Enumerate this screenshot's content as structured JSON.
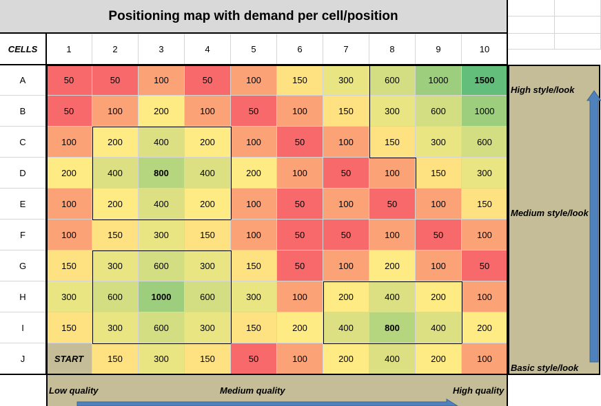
{
  "chart_data": {
    "type": "heatmap",
    "title": "Positioning map with demand per cell/position",
    "corner_label": "CELLS",
    "columns": [
      "1",
      "2",
      "3",
      "4",
      "5",
      "6",
      "7",
      "8",
      "9",
      "10"
    ],
    "rows": [
      "A",
      "B",
      "C",
      "D",
      "E",
      "F",
      "G",
      "H",
      "I",
      "J"
    ],
    "start_label": "START",
    "values": [
      [
        50,
        50,
        100,
        50,
        100,
        150,
        300,
        600,
        1000,
        1500
      ],
      [
        50,
        100,
        200,
        100,
        50,
        100,
        150,
        300,
        600,
        1000
      ],
      [
        100,
        200,
        400,
        200,
        100,
        50,
        100,
        150,
        300,
        600
      ],
      [
        200,
        400,
        800,
        400,
        200,
        100,
        50,
        100,
        150,
        300
      ],
      [
        100,
        200,
        400,
        200,
        100,
        50,
        100,
        50,
        100,
        150
      ],
      [
        100,
        150,
        300,
        150,
        100,
        50,
        50,
        100,
        50,
        100
      ],
      [
        150,
        300,
        600,
        300,
        150,
        50,
        100,
        200,
        100,
        50
      ],
      [
        300,
        600,
        1000,
        600,
        300,
        100,
        200,
        400,
        200,
        100
      ],
      [
        150,
        300,
        600,
        300,
        150,
        200,
        400,
        800,
        400,
        200
      ],
      [
        null,
        150,
        300,
        150,
        50,
        100,
        200,
        400,
        200,
        100
      ]
    ],
    "bold_cells": [
      [
        0,
        9
      ],
      [
        3,
        2
      ],
      [
        7,
        2
      ],
      [
        8,
        7
      ]
    ],
    "y_axis_labels": {
      "top": "High style/look",
      "middle": "Medium style/look",
      "bottom": "Basic style/look"
    },
    "x_axis_labels": {
      "left": "Low quality",
      "middle": "Medium quality",
      "right": "High quality"
    },
    "color_scale": {
      "50": "#f8696b",
      "100": "#fba276",
      "150": "#fee282",
      "200": "#ffeb84",
      "300": "#e9e583",
      "400": "#dde082",
      "600": "#d3dd81",
      "800": "#b5d57f",
      "1000": "#9cce7e",
      "1500": "#63be7b"
    },
    "colors": {
      "axis_band": "#c4bd97",
      "arrow": "#4f81bd",
      "start_cell": "#c4bd97"
    }
  }
}
